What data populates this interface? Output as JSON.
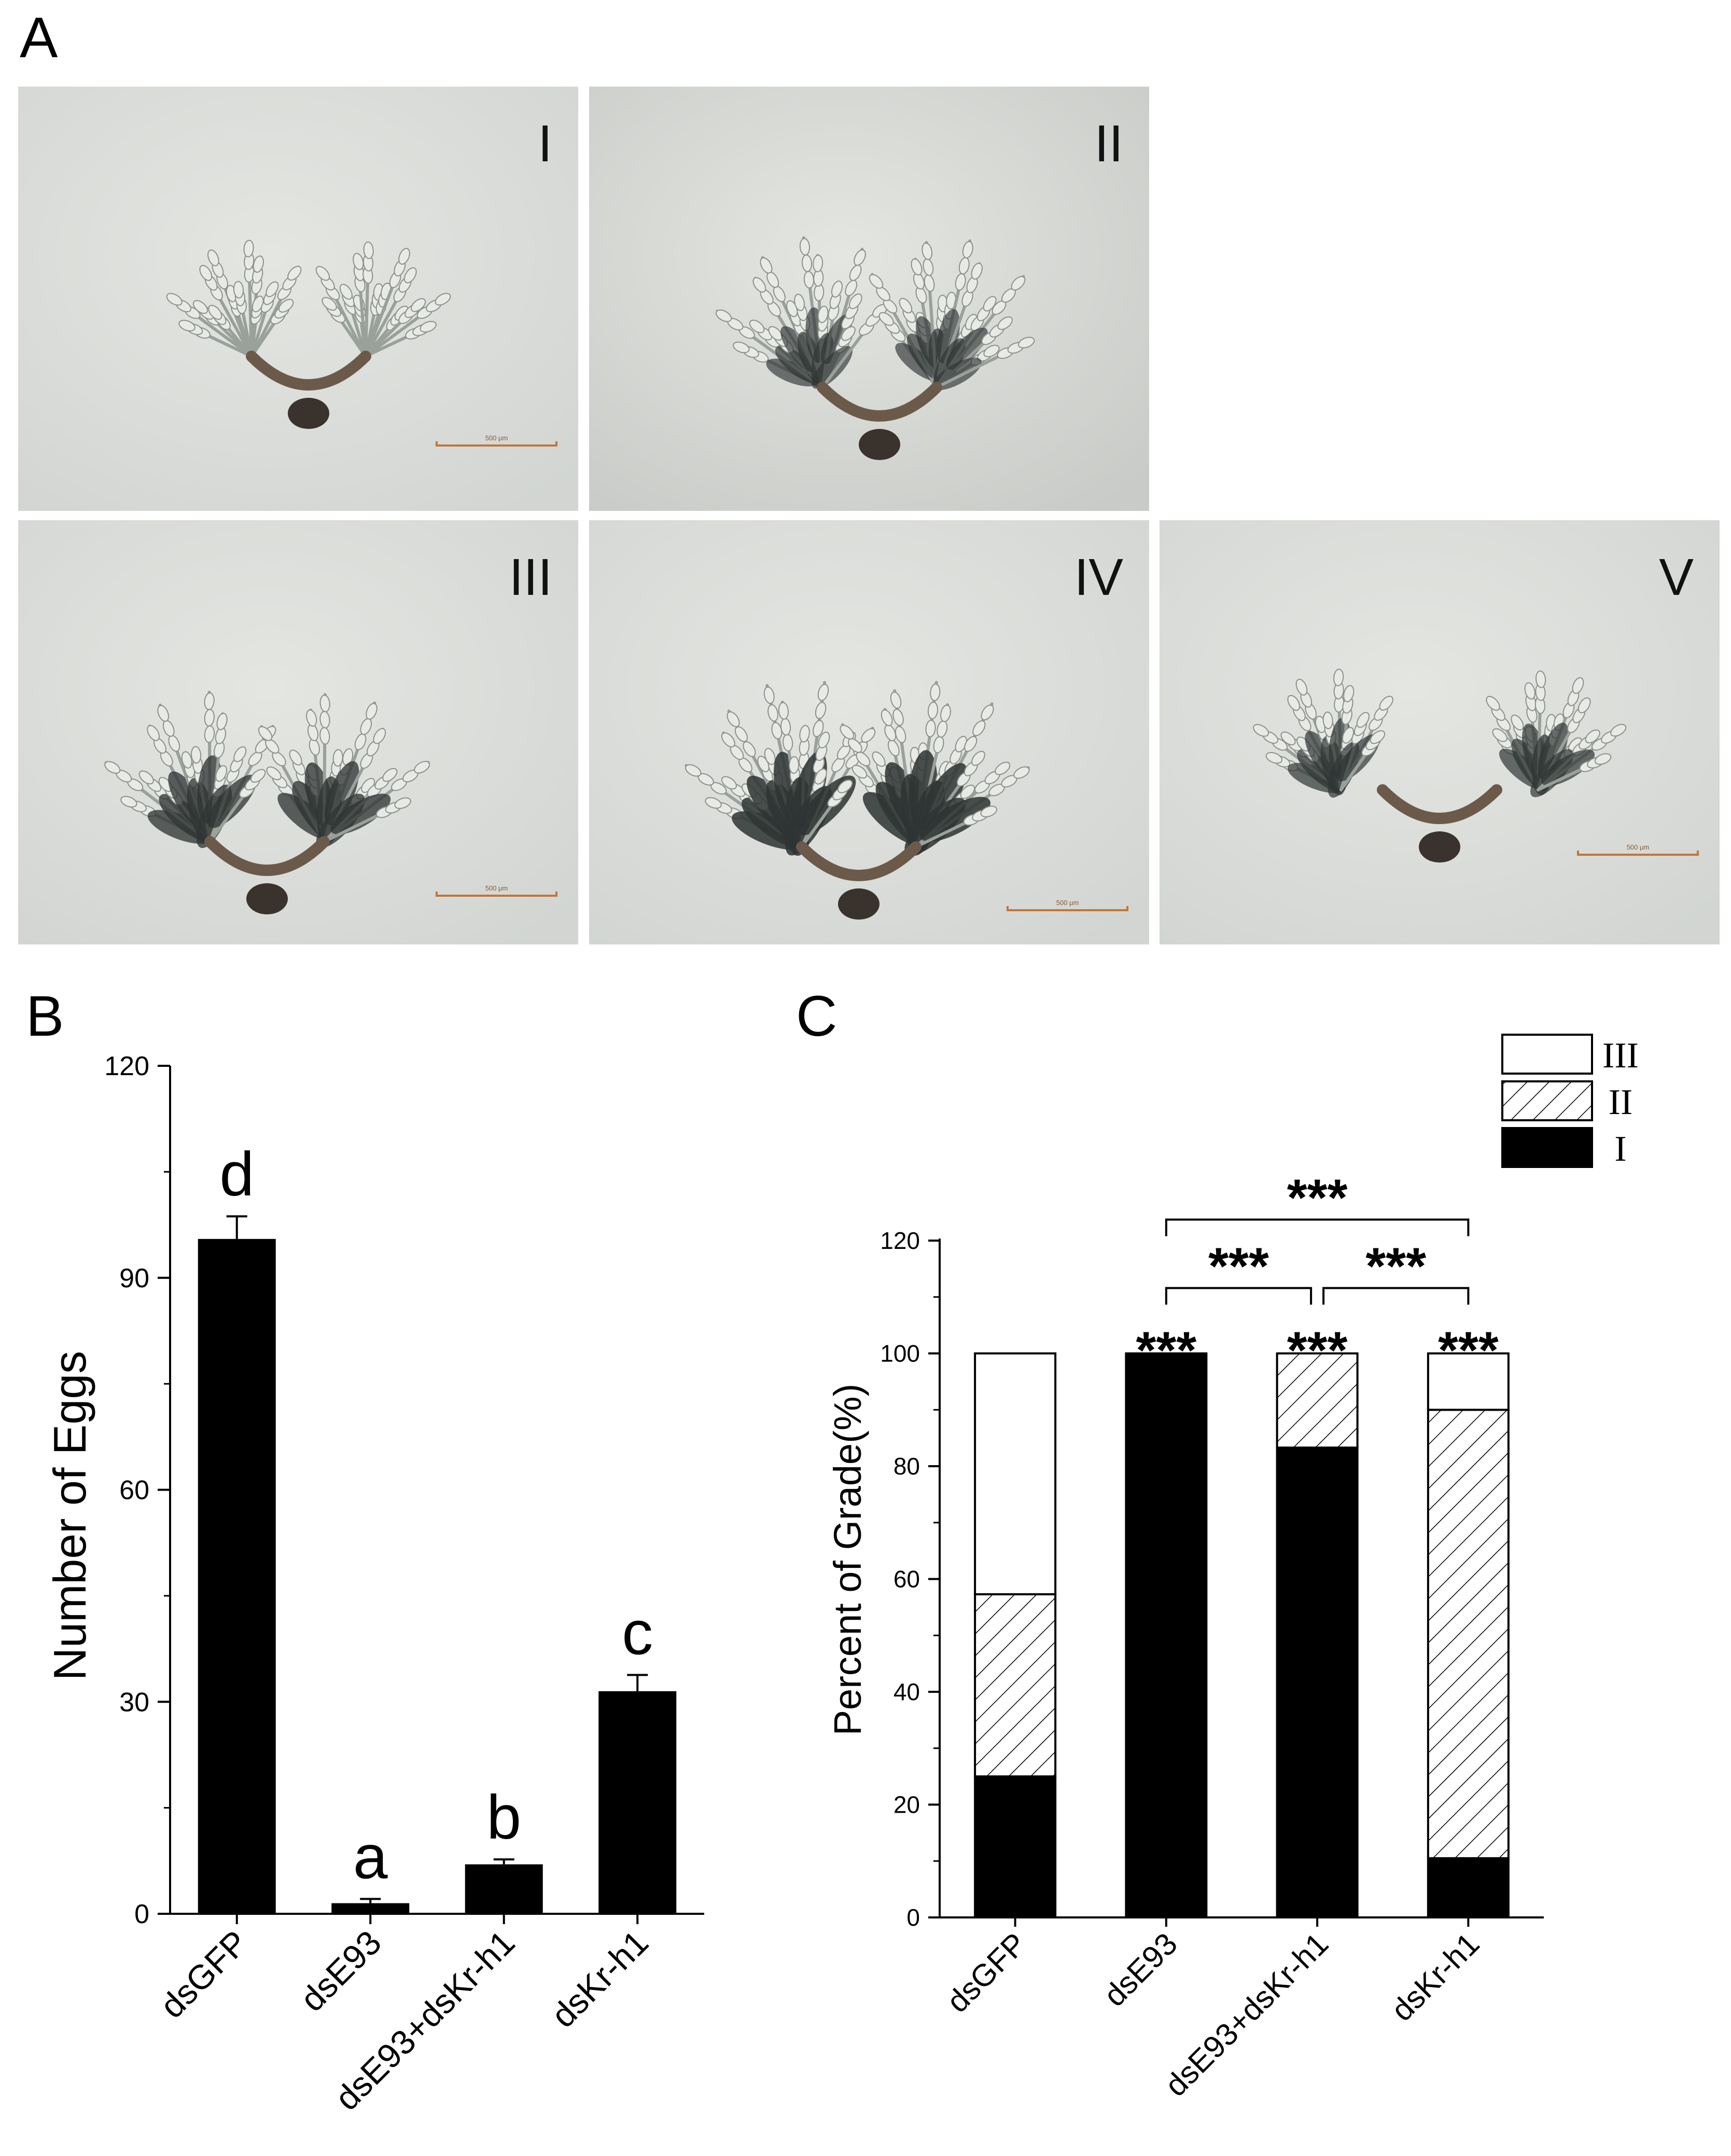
{
  "panels": {
    "a": "A",
    "b": "B",
    "c": "C"
  },
  "photos": [
    {
      "label": "I",
      "scale": "500 μm",
      "stage": 1
    },
    {
      "label": "II",
      "scale": "",
      "stage": 2
    },
    {
      "label": "III",
      "scale": "500 μm",
      "stage": 3
    },
    {
      "label": "IV",
      "scale": "500 μm",
      "stage": 4
    },
    {
      "label": "V",
      "scale": "500 μm",
      "stage": 5
    }
  ],
  "colors": {
    "bar": "#000000",
    "photo_bg": "#d8dcd8",
    "scale": "#c0763a"
  },
  "chart_data": [
    {
      "type": "bar",
      "panel": "B",
      "categories": [
        "dsGFP",
        "dsE93",
        "dsE93+dsKr-h1",
        "dsKr-h1"
      ],
      "values": [
        95.5,
        1.5,
        7,
        31.5
      ],
      "errors": [
        3.2,
        0.6,
        0.7,
        2.3
      ],
      "letters": [
        "d",
        "a",
        "b",
        "c"
      ],
      "ylabel": "Number of Eggs",
      "xlabel": "",
      "ylim": [
        0,
        120
      ],
      "yticks": [
        "0",
        "30",
        "60",
        "90",
        "120"
      ]
    },
    {
      "type": "bar",
      "stacked": true,
      "panel": "C",
      "categories": [
        "dsGFP",
        "dsE93",
        "dsE93+dsKr-h1",
        "dsKr-h1"
      ],
      "series": [
        {
          "name": "I",
          "values": [
            25,
            100,
            83.3,
            10.5
          ],
          "fill": "solid-black"
        },
        {
          "name": "II",
          "values": [
            32.3,
            0,
            16.7,
            79.5
          ],
          "fill": "hatched"
        },
        {
          "name": "III",
          "values": [
            42.7,
            0,
            0,
            10
          ],
          "fill": "white"
        }
      ],
      "ylabel": "Percent of Grade(%)",
      "xlabel": "",
      "ylim": [
        0,
        120
      ],
      "yticks": [
        "0",
        "20",
        "40",
        "60",
        "80",
        "100",
        "120"
      ],
      "bar_annotations": [
        "",
        "***",
        "***",
        "***"
      ],
      "brackets": [
        {
          "from": 1,
          "to": 3,
          "label": "***",
          "level": 2
        },
        {
          "from": 1,
          "to": 2,
          "label": "***",
          "level": 1
        },
        {
          "from": 2,
          "to": 3,
          "label": "***",
          "level": 1
        }
      ],
      "legend": [
        "III",
        "II",
        "I"
      ],
      "legend_position": "top-right"
    }
  ]
}
